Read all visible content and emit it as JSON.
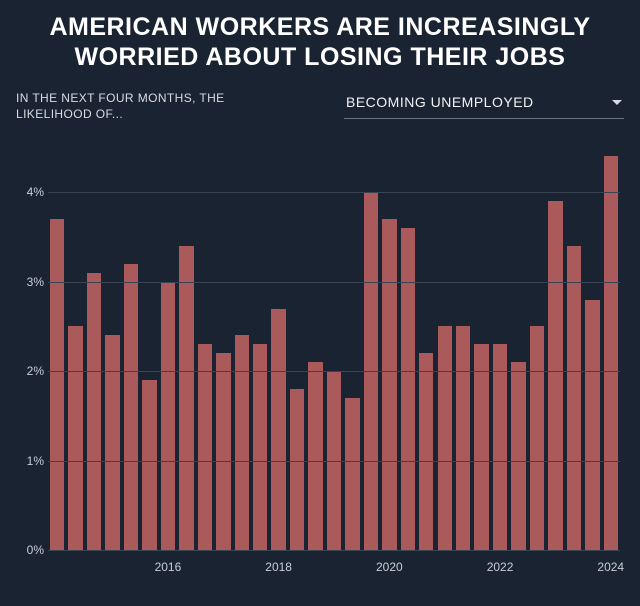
{
  "title": "AMERICAN WORKERS ARE INCREASINGLY WORRIED ABOUT LOSING THEIR JOBS",
  "subtitle": "IN THE NEXT FOUR MONTHS, THE LIKELIHOOD OF...",
  "dropdown": {
    "selected": "BECOMING UNEMPLOYED"
  },
  "chart": {
    "type": "bar",
    "background_color": "#1a2332",
    "bar_color": "#aa5a5a",
    "grid_color": "#3a4452",
    "text_color": "#c8cdd6",
    "title_fontsize": 25,
    "axis_fontsize": 12,
    "bar_width_ratio": 0.78,
    "y": {
      "min": 0,
      "max": 4.6,
      "ticks": [
        0,
        1,
        2,
        3,
        4
      ],
      "tick_labels": [
        "0%",
        "1%",
        "2%",
        "3%",
        "4%"
      ]
    },
    "x_ticks": [
      {
        "index": 6,
        "label": "2016"
      },
      {
        "index": 12,
        "label": "2018"
      },
      {
        "index": 18,
        "label": "2020"
      },
      {
        "index": 24,
        "label": "2022"
      },
      {
        "index": 30,
        "label": "2024"
      }
    ],
    "values": [
      3.7,
      2.5,
      3.1,
      2.4,
      3.2,
      1.9,
      3.0,
      3.4,
      2.3,
      2.2,
      2.4,
      2.3,
      2.7,
      1.8,
      2.1,
      2.0,
      1.7,
      4.0,
      3.7,
      3.6,
      2.2,
      2.5,
      2.5,
      2.3,
      2.3,
      2.1,
      2.5,
      3.9,
      3.4,
      2.8,
      4.4
    ]
  }
}
